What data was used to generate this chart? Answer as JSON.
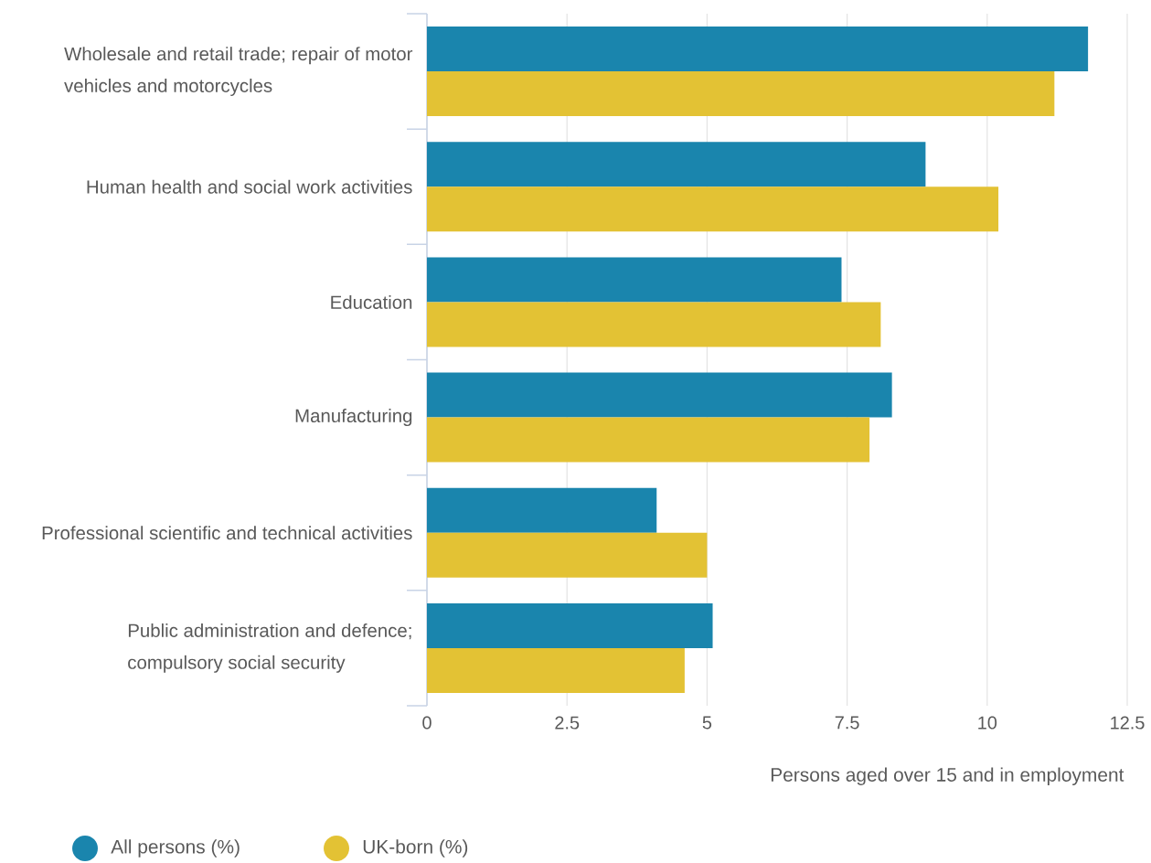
{
  "chart_data": {
    "type": "bar",
    "orientation": "horizontal",
    "xlabel": "Persons aged over 15 and in employment",
    "categories": [
      "Wholesale and retail trade; repair of motor vehicles and motorcycles",
      "Human health and social work activities",
      "Education",
      "Manufacturing",
      "Professional scientific and technical activities",
      "Public administration and defence; compulsory social security"
    ],
    "series": [
      {
        "name": "All persons (%)",
        "color": "#1a85ad",
        "values": [
          11.8,
          8.9,
          7.4,
          8.3,
          4.1,
          5.1
        ]
      },
      {
        "name": "UK-born (%)",
        "color": "#e3c234",
        "values": [
          11.2,
          10.2,
          8.1,
          7.9,
          5.0,
          4.6
        ]
      }
    ],
    "xlim": [
      0,
      12.5
    ],
    "xticks": [
      0,
      2.5,
      5,
      7.5,
      10,
      12.5
    ],
    "grid": "x",
    "legend": "bottom left"
  }
}
